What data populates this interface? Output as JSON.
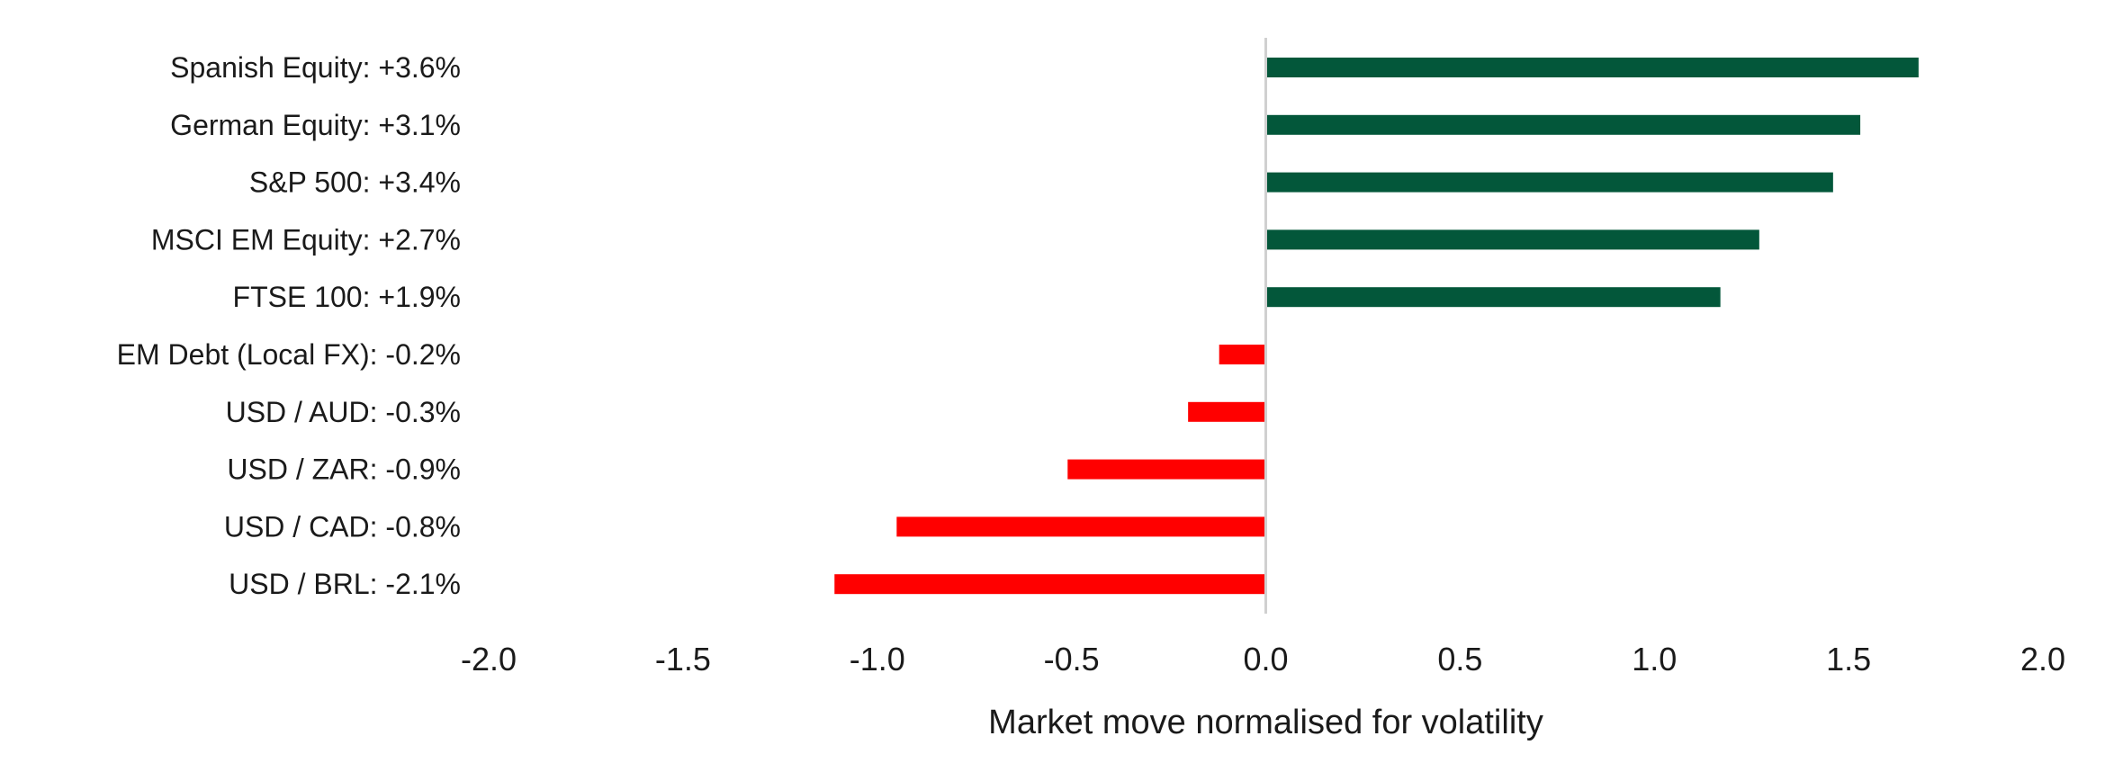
{
  "chart_data": {
    "type": "bar",
    "orientation": "horizontal",
    "title": "",
    "xlabel": "Market move normalised for volatility",
    "ylabel": "",
    "xlim": [
      -2.0,
      2.0
    ],
    "x_ticks": [
      "-2.0",
      "-1.5",
      "-1.0",
      "-0.5",
      "0.0",
      "0.5",
      "1.0",
      "1.5",
      "2.0"
    ],
    "grid": false,
    "legend": "none",
    "categories": [
      "Spanish Equity: +3.6%",
      "German Equity: +3.1%",
      "S&P 500: +3.4%",
      "MSCI EM Equity: +2.7%",
      "FTSE 100: +1.9%",
      "EM Debt (Local FX): -0.2%",
      "USD / AUD: -0.3%",
      "USD / ZAR: -0.9%",
      "USD / CAD: -0.8%",
      "USD / BRL: -2.1%"
    ],
    "values": [
      1.68,
      1.53,
      1.46,
      1.27,
      1.17,
      -0.12,
      -0.2,
      -0.51,
      -0.95,
      -1.11
    ],
    "colors": {
      "positive": "#03573a",
      "negative": "#ff0000",
      "zero_line": "#d0d0d0"
    }
  }
}
